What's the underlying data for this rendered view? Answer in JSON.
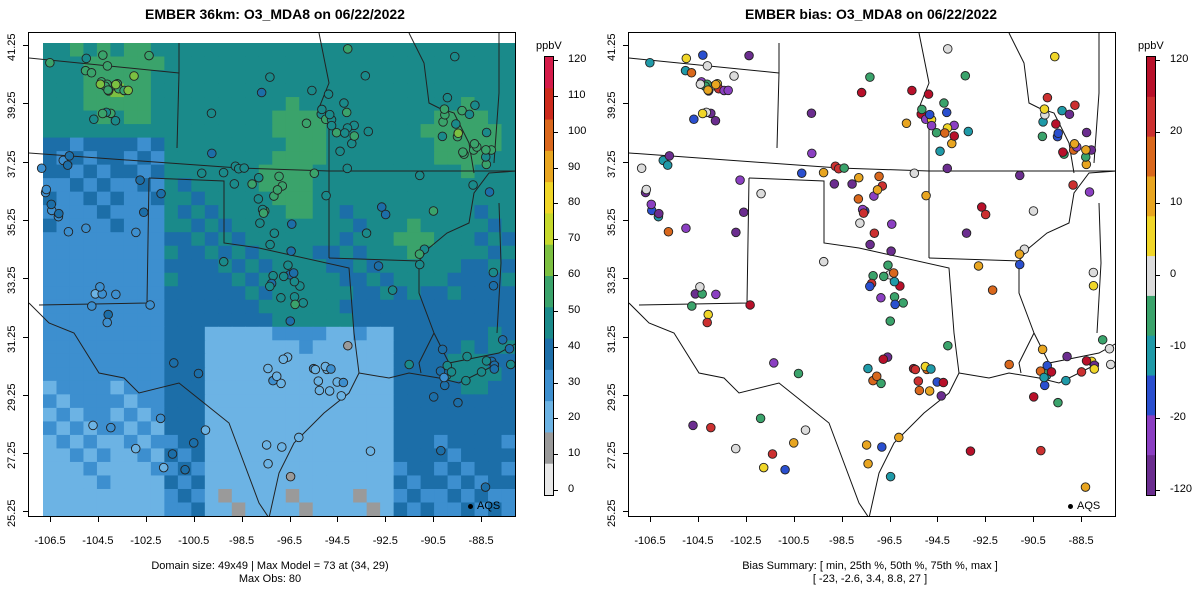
{
  "left_panel": {
    "title": "EMBER 36km: O3_MDA8 on 06/22/2022",
    "unit": "ppbV",
    "colorbar_labels": [
      "120",
      "110",
      "100",
      "90",
      "80",
      "70",
      "60",
      "50",
      "40",
      "30",
      "20",
      "10",
      "0"
    ],
    "caption_line1": "Domain size: 49x49 | Max Model = 73 at (34, 29)",
    "caption_line2": "Max Obs: 80",
    "legend_label": "AQS"
  },
  "right_panel": {
    "title": "EMBER bias: O3_MDA8 on 06/22/2022",
    "unit": "ppbV",
    "colorbar_labels": [
      "120",
      "20",
      "10",
      "0",
      "-10",
      "-20",
      "-120"
    ],
    "caption_line1": "Bias Summary: [ min, 25th %, 50th %, 75th %, max ]",
    "caption_line2": "[ -23,   -2.6,   3.4,   8.8,   27 ]",
    "legend_label": "AQS"
  },
  "axes": {
    "y_ticks": [
      "41.25",
      "39.25",
      "37.25",
      "35.25",
      "33.25",
      "31.25",
      "29.25",
      "27.25",
      "25.25"
    ],
    "x_ticks": [
      "-106.5",
      "-104.5",
      "-102.5",
      "-100.5",
      "-98.5",
      "-96.5",
      "-94.5",
      "-92.5",
      "-90.5",
      "-88.5"
    ]
  },
  "colors": {
    "conc_scale": [
      "#e8e8e8",
      "#9a9a9a",
      "#6cb3e4",
      "#3d8fcf",
      "#1c6ea8",
      "#1a8a8a",
      "#3aa36b",
      "#7cc041",
      "#c6d92c",
      "#f0d628",
      "#e8a520",
      "#d9671c",
      "#cc2a1c",
      "#d51b4a"
    ],
    "bias_scale": [
      "#6b2d8f",
      "#8b3fc2",
      "#2a4fcf",
      "#1f9aa8",
      "#3aa36b",
      "#dcdcdc",
      "#f0d628",
      "#e8a520",
      "#d9671c",
      "#cc3030",
      "#b8102a"
    ]
  }
}
